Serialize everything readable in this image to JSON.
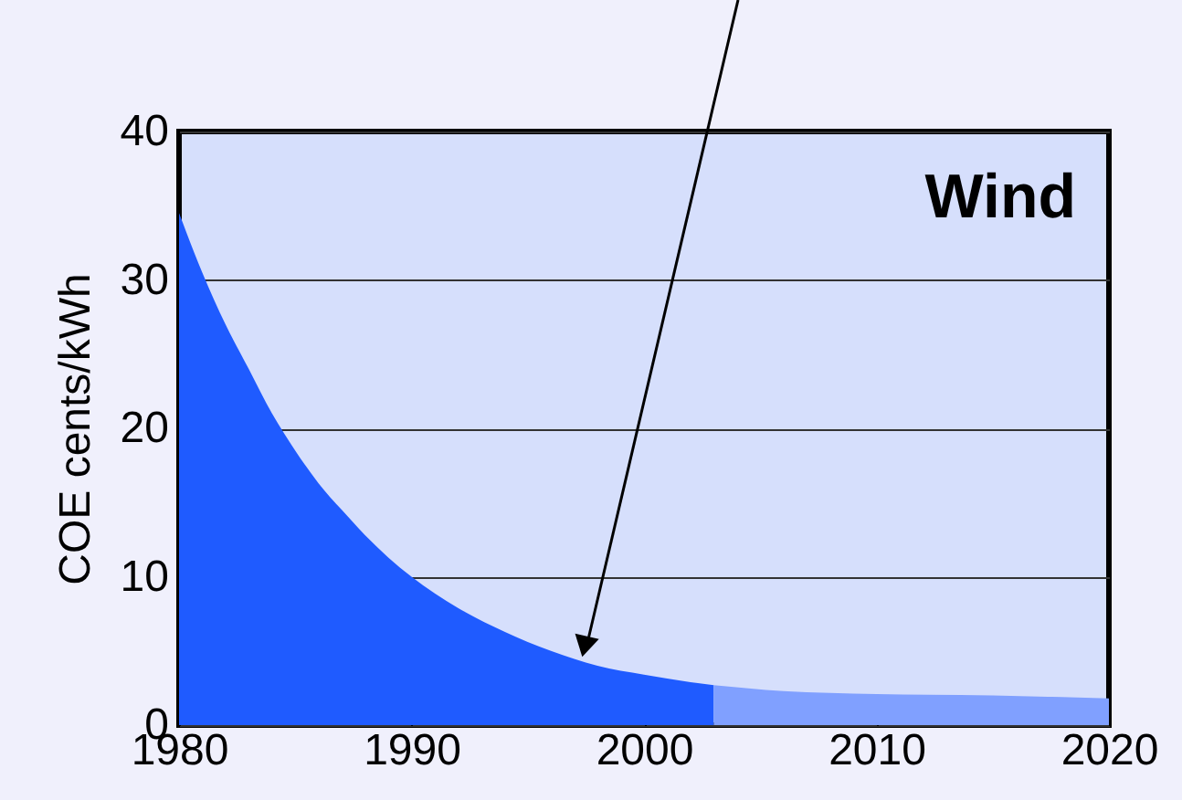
{
  "chart_data": {
    "type": "area",
    "ylabel": "COE cents/kWh",
    "annotations": [
      "Wind"
    ],
    "xlim": [
      1980,
      2020
    ],
    "xticks": [
      1980,
      1990,
      2000,
      2010,
      2020
    ],
    "ylim": [
      0,
      40
    ],
    "yticks": [
      0,
      10,
      20,
      30,
      40
    ],
    "grid": "y",
    "series": [
      {
        "color": "#1f5bff",
        "x": [
          1980,
          1981,
          1982,
          1983,
          1984,
          1985,
          1986,
          1987,
          1988,
          1989,
          1990,
          1992,
          1994,
          1996,
          1998,
          2000,
          2002,
          2003
        ],
        "values": [
          34.5,
          30.5,
          27,
          24,
          21,
          18.5,
          16.3,
          14.5,
          12.8,
          11.3,
          10,
          7.9,
          6.3,
          5,
          4,
          3.4,
          2.9,
          2.7
        ]
      },
      {
        "color": "#80a0ff",
        "x": [
          2003,
          2006,
          2010,
          2015,
          2020
        ],
        "values": [
          2.7,
          2.3,
          2.1,
          2.0,
          1.8
        ]
      }
    ]
  }
}
